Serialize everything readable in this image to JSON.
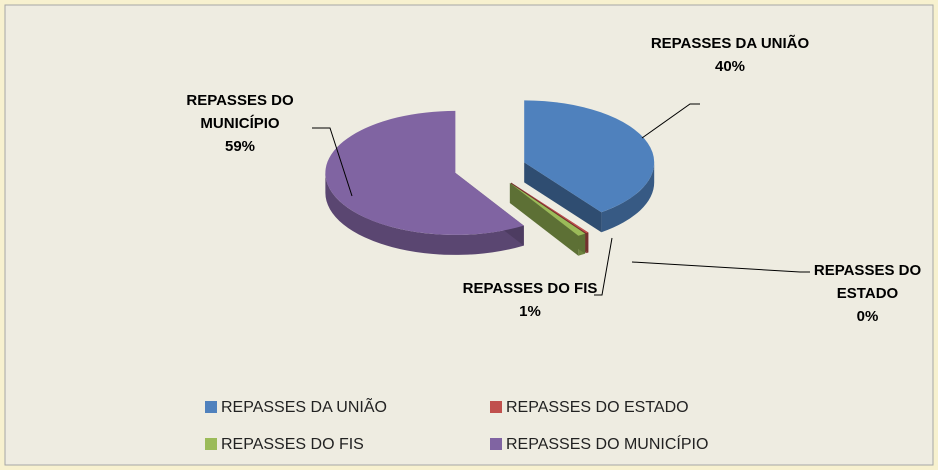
{
  "chart_data": {
    "type": "pie",
    "categories": [
      "REPASSES DA UNIÃO",
      "REPASSES DO ESTADO",
      "REPASSES DO FIS",
      "REPASSES DO MUNICÍPIO"
    ],
    "values": [
      40,
      0.3,
      1,
      59
    ],
    "value_labels": [
      "40%",
      "0%",
      "1%",
      "59%"
    ],
    "colors": [
      "#4f81bd",
      "#c0504d",
      "#9bbb59",
      "#8064a2"
    ],
    "legend": "bottom"
  }
}
